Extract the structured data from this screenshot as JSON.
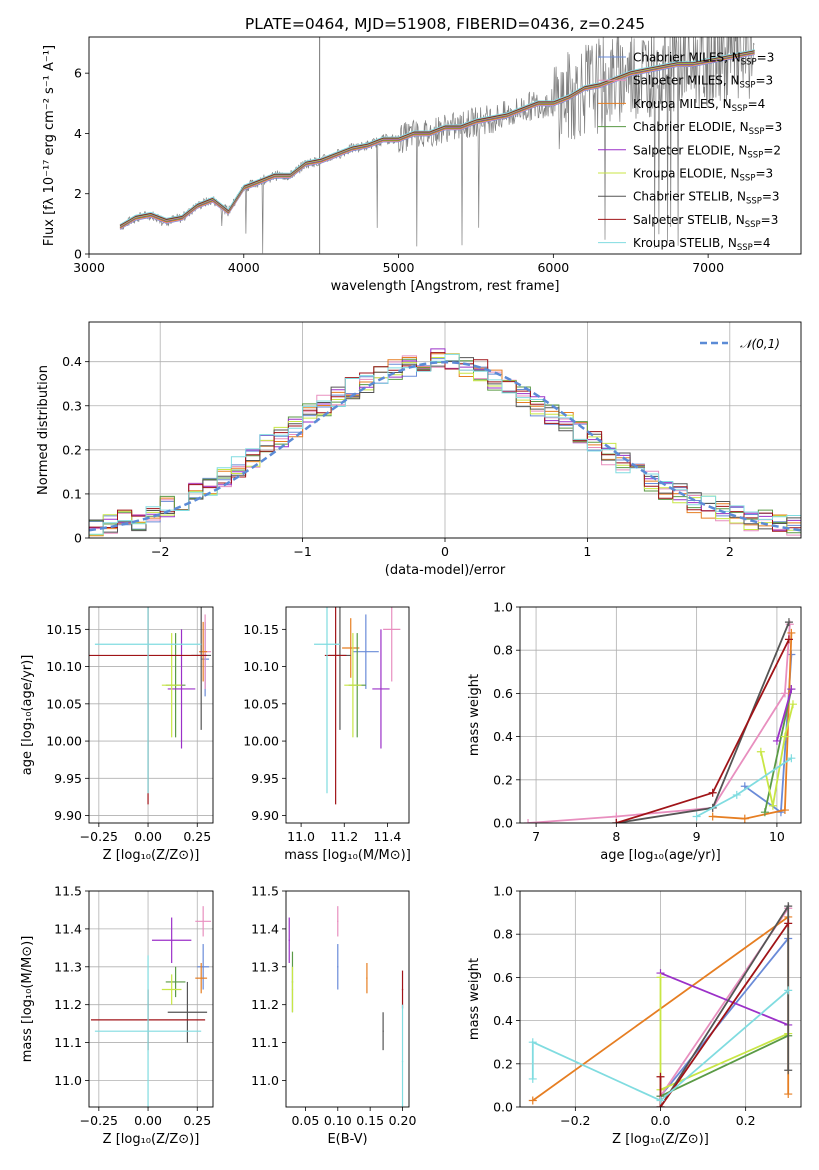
{
  "figure": {
    "title": "PLATE=0464, MJD=51908, FIBERID=0436, z=0.245"
  },
  "colors": {
    "chabrier_miles": "#6a8bd8",
    "salpeter_miles": "#e88fbf",
    "kroupa_miles": "#e67e22",
    "chabrier_elodie": "#5a9a45",
    "salpeter_elodie": "#9b30c8",
    "kroupa_elodie": "#c8e645",
    "chabrier_stelib": "#555555",
    "salpeter_stelib": "#a01418",
    "kroupa_stelib": "#80dce0",
    "spectrum": "#808080"
  },
  "legend_models": [
    {
      "label": "Chabrier MILES, N",
      "sub": "SSP",
      "suffix": "=3",
      "color": "#6a8bd8"
    },
    {
      "label": "Salpeter MILES, N",
      "sub": "SSP",
      "suffix": "=3",
      "color": "#e88fbf"
    },
    {
      "label": "Kroupa MILES, N",
      "sub": "SSP",
      "suffix": "=4",
      "color": "#e67e22"
    },
    {
      "label": "Chabrier ELODIE, N",
      "sub": "SSP",
      "suffix": "=3",
      "color": "#5a9a45"
    },
    {
      "label": "Salpeter ELODIE, N",
      "sub": "SSP",
      "suffix": "=2",
      "color": "#9b30c8"
    },
    {
      "label": "Kroupa ELODIE, N",
      "sub": "SSP",
      "suffix": "=3",
      "color": "#c8e645"
    },
    {
      "label": "Chabrier STELIB, N",
      "sub": "SSP",
      "suffix": "=3",
      "color": "#555555"
    },
    {
      "label": "Salpeter STELIB, N",
      "sub": "SSP",
      "suffix": "=3",
      "color": "#a01418"
    },
    {
      "label": "Kroupa STELIB, N",
      "sub": "SSP",
      "suffix": "=4",
      "color": "#80dce0"
    }
  ],
  "chart_data": [
    {
      "id": "spectrum",
      "type": "line",
      "xlabel": "wavelength [Angstrom, rest frame]",
      "ylabel": "Flux [fλ 10⁻¹⁷ erg cm⁻² s⁻¹ A⁻¹]",
      "xlim": [
        3000,
        7600
      ],
      "ylim": [
        0,
        7.2
      ],
      "xticks": [
        3000,
        4000,
        5000,
        6000,
        7000
      ],
      "yticks": [
        0,
        2,
        4,
        6
      ],
      "x": [
        3200,
        3300,
        3400,
        3500,
        3600,
        3700,
        3800,
        3900,
        4000,
        4100,
        4200,
        4300,
        4400,
        4500,
        4600,
        4700,
        4800,
        4900,
        5000,
        5100,
        5200,
        5300,
        5400,
        5500,
        5600,
        5700,
        5800,
        5900,
        6000,
        6100,
        6200,
        6300,
        6400,
        6500,
        6600,
        6700,
        6800,
        6900,
        7000,
        7100,
        7200,
        7300
      ],
      "model_flux": [
        0.9,
        1.2,
        1.3,
        1.1,
        1.2,
        1.6,
        1.8,
        1.4,
        2.2,
        2.4,
        2.6,
        2.6,
        3.0,
        3.1,
        3.3,
        3.5,
        3.6,
        3.8,
        3.8,
        4.0,
        4.0,
        4.2,
        4.2,
        4.4,
        4.5,
        4.6,
        4.8,
        5.0,
        5.0,
        5.2,
        5.5,
        5.6,
        5.8,
        6.0,
        6.1,
        6.2,
        6.3,
        6.3,
        6.4,
        6.5,
        6.6,
        6.7
      ],
      "legend_position": "upper right"
    },
    {
      "id": "residuals",
      "type": "histogram",
      "xlabel": "(data-model)/error",
      "ylabel": "Normed distribution",
      "xlim": [
        -2.5,
        2.5
      ],
      "ylim": [
        0,
        0.49
      ],
      "xticks": [
        -2,
        -1,
        0,
        1,
        2
      ],
      "yticks": [
        0.0,
        0.1,
        0.2,
        0.3,
        0.4
      ],
      "bin_centers": [
        -2.45,
        -2.35,
        -2.25,
        -2.15,
        -2.05,
        -1.95,
        -1.85,
        -1.75,
        -1.65,
        -1.55,
        -1.45,
        -1.35,
        -1.25,
        -1.15,
        -1.05,
        -0.95,
        -0.85,
        -0.75,
        -0.65,
        -0.55,
        -0.45,
        -0.35,
        -0.25,
        -0.15,
        -0.05,
        0.05,
        0.15,
        0.25,
        0.35,
        0.45,
        0.55,
        0.65,
        0.75,
        0.85,
        0.95,
        1.05,
        1.15,
        1.25,
        1.35,
        1.45,
        1.55,
        1.65,
        1.75,
        1.85,
        1.95,
        2.05,
        2.15,
        2.25,
        2.35,
        2.45
      ],
      "counts": [
        0.03,
        0.03,
        0.04,
        0.04,
        0.05,
        0.07,
        0.08,
        0.1,
        0.12,
        0.14,
        0.16,
        0.18,
        0.21,
        0.23,
        0.25,
        0.28,
        0.3,
        0.32,
        0.34,
        0.35,
        0.37,
        0.38,
        0.39,
        0.4,
        0.41,
        0.4,
        0.39,
        0.38,
        0.36,
        0.34,
        0.32,
        0.3,
        0.28,
        0.26,
        0.24,
        0.22,
        0.19,
        0.17,
        0.15,
        0.13,
        0.11,
        0.1,
        0.08,
        0.07,
        0.06,
        0.05,
        0.04,
        0.04,
        0.03,
        0.03
      ],
      "reference": {
        "label": "𝒩(0,1)",
        "color": "#5b8bd6"
      },
      "grid": true
    },
    {
      "id": "age_vs_z",
      "type": "scatter",
      "xlabel": "Z [log₁₀(Z/Z⊙)]",
      "ylabel": "age  [log₁₀(age/yr)]",
      "xlim": [
        -0.3,
        0.33
      ],
      "ylim": [
        9.89,
        10.18
      ],
      "xticks": [
        -0.25,
        0.0,
        0.25
      ],
      "xticklabels": [
        "−0.25",
        "0.00",
        "0.25"
      ],
      "yticks": [
        9.9,
        9.95,
        10.0,
        10.05,
        10.1,
        10.15
      ],
      "yticklabels": [
        "9.90",
        "9.95",
        "10.00",
        "10.05",
        "10.10",
        "10.15"
      ],
      "points": [
        {
          "model": "chabrier_miles",
          "x": 0.29,
          "y": 10.11,
          "xerr": 0.02,
          "yerr": 0.05
        },
        {
          "model": "salpeter_miles",
          "x": 0.29,
          "y": 10.12,
          "xerr": 0.03,
          "yerr": 0.05
        },
        {
          "model": "kroupa_miles",
          "x": 0.28,
          "y": 10.12,
          "xerr": 0.02,
          "yerr": 0.04
        },
        {
          "model": "chabrier_elodie",
          "x": 0.14,
          "y": 10.075,
          "xerr": 0.05,
          "yerr": 0.07
        },
        {
          "model": "salpeter_elodie",
          "x": 0.17,
          "y": 10.07,
          "xerr": 0.07,
          "yerr": 0.08
        },
        {
          "model": "kroupa_elodie",
          "x": 0.12,
          "y": 10.075,
          "xerr": 0.05,
          "yerr": 0.07
        },
        {
          "model": "chabrier_stelib",
          "x": 0.27,
          "y": 10.115,
          "xerr": 0.05,
          "yerr": 0.1
        },
        {
          "model": "salpeter_stelib",
          "x": 0.0,
          "y": 10.115,
          "xerr": 0.3,
          "yerr": 0.2
        },
        {
          "model": "kroupa_stelib",
          "x": 0.0,
          "y": 10.13,
          "xerr": 0.27,
          "yerr": 0.2
        }
      ],
      "grid": true
    },
    {
      "id": "age_vs_mass",
      "type": "scatter",
      "xlabel": "mass [log₁₀(M/M⊙)]",
      "ylabel": "",
      "xlim": [
        10.93,
        11.5
      ],
      "ylim": [
        9.89,
        10.18
      ],
      "xticks": [
        11.0,
        11.2,
        11.4
      ],
      "xticklabels": [
        "11.0",
        "11.2",
        "11.4"
      ],
      "yticks": [
        9.9,
        9.95,
        10.0,
        10.05,
        10.1,
        10.15
      ],
      "yticklabels": [
        "9.90",
        "9.95",
        "10.00",
        "10.05",
        "10.10",
        "10.15"
      ],
      "points": [
        {
          "model": "chabrier_miles",
          "x": 11.3,
          "y": 10.12,
          "xerr": 0.06,
          "yerr": 0.05
        },
        {
          "model": "salpeter_miles",
          "x": 11.42,
          "y": 10.15,
          "xerr": 0.04,
          "yerr": 0.07
        },
        {
          "model": "kroupa_miles",
          "x": 11.23,
          "y": 10.125,
          "xerr": 0.04,
          "yerr": 0.04
        },
        {
          "model": "chabrier_elodie",
          "x": 11.26,
          "y": 10.075,
          "xerr": 0.04,
          "yerr": 0.07
        },
        {
          "model": "salpeter_elodie",
          "x": 11.37,
          "y": 10.07,
          "xerr": 0.04,
          "yerr": 0.08
        },
        {
          "model": "kroupa_elodie",
          "x": 11.24,
          "y": 10.075,
          "xerr": 0.04,
          "yerr": 0.07
        },
        {
          "model": "chabrier_stelib",
          "x": 11.18,
          "y": 10.115,
          "xerr": 0.05,
          "yerr": 0.1
        },
        {
          "model": "salpeter_stelib",
          "x": 11.16,
          "y": 10.115,
          "xerr": 0.05,
          "yerr": 0.2
        },
        {
          "model": "kroupa_stelib",
          "x": 11.12,
          "y": 10.13,
          "xerr": 0.06,
          "yerr": 0.2
        }
      ],
      "grid": false
    },
    {
      "id": "mass_weight_vs_age",
      "type": "line",
      "xlabel": "age  [log₁₀(age/yr)]",
      "ylabel": "mass weight",
      "xlim": [
        6.8,
        10.3
      ],
      "ylim": [
        0,
        1.0
      ],
      "xticks": [
        7,
        8,
        9,
        10
      ],
      "yticks": [
        0.0,
        0.2,
        0.4,
        0.6,
        0.8,
        1.0
      ],
      "yticklabels": [
        "0.0",
        "0.2",
        "0.4",
        "0.6",
        "0.8",
        "1.0"
      ],
      "series": [
        {
          "model": "chabrier_miles",
          "x": [
            9.6,
            10.05,
            10.18
          ],
          "y": [
            0.17,
            0.05,
            0.78
          ]
        },
        {
          "model": "salpeter_miles",
          "x": [
            6.9,
            8.0,
            9.2,
            10.1,
            10.16
          ],
          "y": [
            0.0,
            0.03,
            0.07,
            0.6,
            0.92
          ]
        },
        {
          "model": "kroupa_miles",
          "x": [
            9.2,
            9.6,
            10.1,
            10.18
          ],
          "y": [
            0.03,
            0.02,
            0.06,
            0.88
          ]
        },
        {
          "model": "chabrier_elodie",
          "x": [
            9.85,
            10.18
          ],
          "y": [
            0.05,
            0.62
          ]
        },
        {
          "model": "salpeter_elodie",
          "x": [
            10.0,
            10.18
          ],
          "y": [
            0.38,
            0.62
          ]
        },
        {
          "model": "kroupa_elodie",
          "x": [
            9.8,
            9.95,
            10.1,
            10.2
          ],
          "y": [
            0.33,
            0.08,
            0.4,
            0.55
          ]
        },
        {
          "model": "chabrier_stelib",
          "x": [
            8.0,
            9.2,
            10.15
          ],
          "y": [
            0.0,
            0.07,
            0.93
          ]
        },
        {
          "model": "salpeter_stelib",
          "x": [
            8.0,
            9.2,
            10.15
          ],
          "y": [
            0.0,
            0.14,
            0.85
          ]
        },
        {
          "model": "kroupa_stelib",
          "x": [
            9.0,
            9.5,
            10.18
          ],
          "y": [
            0.03,
            0.13,
            0.3
          ]
        }
      ],
      "grid": true
    },
    {
      "id": "mass_vs_z",
      "type": "scatter",
      "xlabel": "Z [log₁₀(Z/Z⊙)]",
      "ylabel": "mass [log₁₀(M/M⊙)]",
      "xlim": [
        -0.3,
        0.33
      ],
      "ylim": [
        10.93,
        11.5
      ],
      "xticks": [
        -0.25,
        0.0,
        0.25
      ],
      "xticklabels": [
        "−0.25",
        "0.00",
        "0.25"
      ],
      "yticks": [
        11.0,
        11.1,
        11.2,
        11.3,
        11.4,
        11.5
      ],
      "yticklabels": [
        "11.0",
        "11.1",
        "11.2",
        "11.3",
        "11.4",
        "11.5"
      ],
      "points": [
        {
          "model": "chabrier_miles",
          "x": 0.28,
          "y": 11.3,
          "xerr": 0.03,
          "yerr": 0.06
        },
        {
          "model": "salpeter_miles",
          "x": 0.28,
          "y": 11.42,
          "xerr": 0.04,
          "yerr": 0.04
        },
        {
          "model": "kroupa_miles",
          "x": 0.27,
          "y": 11.27,
          "xerr": 0.03,
          "yerr": 0.04
        },
        {
          "model": "chabrier_elodie",
          "x": 0.14,
          "y": 11.26,
          "xerr": 0.05,
          "yerr": 0.04
        },
        {
          "model": "salpeter_elodie",
          "x": 0.12,
          "y": 11.37,
          "xerr": 0.1,
          "yerr": 0.06
        },
        {
          "model": "kroupa_elodie",
          "x": 0.12,
          "y": 11.24,
          "xerr": 0.05,
          "yerr": 0.04
        },
        {
          "model": "chabrier_stelib",
          "x": 0.2,
          "y": 11.18,
          "xerr": 0.1,
          "yerr": 0.08
        },
        {
          "model": "salpeter_stelib",
          "x": 0.0,
          "y": 11.16,
          "xerr": 0.29,
          "yerr": 0.08
        },
        {
          "model": "kroupa_stelib",
          "x": 0.0,
          "y": 11.13,
          "xerr": 0.27,
          "yerr": 0.2
        }
      ],
      "grid": true
    },
    {
      "id": "mass_vs_ebv",
      "type": "scatter",
      "xlabel": "E(B-V)",
      "ylabel": "",
      "xlim": [
        0.02,
        0.21
      ],
      "ylim": [
        10.93,
        11.5
      ],
      "xticks": [
        0.05,
        0.1,
        0.15,
        0.2
      ],
      "xticklabels": [
        "0.05",
        "0.10",
        "0.15",
        "0.20"
      ],
      "yticks": [
        11.0,
        11.1,
        11.2,
        11.3,
        11.4,
        11.5
      ],
      "yticklabels": [
        "11.0",
        "11.1",
        "11.2",
        "11.3",
        "11.4",
        "11.5"
      ],
      "points": [
        {
          "model": "chabrier_miles",
          "x": 0.1,
          "y": 11.3,
          "xerr": 0.001,
          "yerr": 0.06
        },
        {
          "model": "salpeter_miles",
          "x": 0.1,
          "y": 11.42,
          "xerr": 0.001,
          "yerr": 0.04
        },
        {
          "model": "kroupa_miles",
          "x": 0.145,
          "y": 11.27,
          "xerr": 0.001,
          "yerr": 0.04
        },
        {
          "model": "chabrier_elodie",
          "x": 0.03,
          "y": 11.26,
          "xerr": 0.001,
          "yerr": 0.08
        },
        {
          "model": "salpeter_elodie",
          "x": 0.025,
          "y": 11.37,
          "xerr": 0.001,
          "yerr": 0.06
        },
        {
          "model": "kroupa_elodie",
          "x": 0.03,
          "y": 11.24,
          "xerr": 0.001,
          "yerr": 0.06
        },
        {
          "model": "chabrier_stelib",
          "x": 0.17,
          "y": 11.13,
          "xerr": 0.001,
          "yerr": 0.05
        },
        {
          "model": "salpeter_stelib",
          "x": 0.2,
          "y": 11.24,
          "xerr": 0.001,
          "yerr": 0.05
        },
        {
          "model": "kroupa_stelib",
          "x": 0.2,
          "y": 11.05,
          "xerr": 0.001,
          "yerr": 0.15
        }
      ],
      "grid": false
    },
    {
      "id": "mass_weight_vs_z",
      "type": "line",
      "xlabel": "Z [log₁₀(Z/Z⊙)]",
      "ylabel": "mass weight",
      "xlim": [
        -0.33,
        0.33
      ],
      "ylim": [
        0,
        1.0
      ],
      "xticks": [
        -0.2,
        0.0,
        0.2
      ],
      "xticklabels": [
        "−0.2",
        "0.0",
        "0.2"
      ],
      "yticks": [
        0.0,
        0.2,
        0.4,
        0.6,
        0.8,
        1.0
      ],
      "yticklabels": [
        "0.0",
        "0.2",
        "0.4",
        "0.6",
        "0.8",
        "1.0"
      ],
      "series": [
        {
          "model": "chabrier_miles",
          "x": [
            0.0,
            0.3
          ],
          "y": [
            0.05,
            0.78
          ]
        },
        {
          "model": "salpeter_miles",
          "x": [
            0.0,
            0.3
          ],
          "y": [
            0.05,
            0.92
          ]
        },
        {
          "model": "kroupa_miles",
          "x": [
            -0.3,
            0.3,
            0.3
          ],
          "y": [
            0.03,
            0.88,
            0.06
          ]
        },
        {
          "model": "chabrier_elodie",
          "x": [
            0.0,
            0.3
          ],
          "y": [
            0.05,
            0.33
          ]
        },
        {
          "model": "salpeter_elodie",
          "x": [
            0.0,
            0.3
          ],
          "y": [
            0.62,
            0.38
          ]
        },
        {
          "model": "kroupa_elodie",
          "x": [
            0.0,
            0.0,
            0.3
          ],
          "y": [
            0.6,
            0.08,
            0.34
          ]
        },
        {
          "model": "chabrier_stelib",
          "x": [
            0.0,
            0.3,
            0.3
          ],
          "y": [
            0.0,
            0.93,
            0.17
          ]
        },
        {
          "model": "salpeter_stelib",
          "x": [
            0.0,
            0.0,
            0.3
          ],
          "y": [
            0.14,
            0.0,
            0.85
          ]
        },
        {
          "model": "kroupa_stelib",
          "x": [
            -0.3,
            -0.3,
            0.0,
            0.3
          ],
          "y": [
            0.13,
            0.3,
            0.03,
            0.54
          ]
        }
      ],
      "grid": true
    }
  ]
}
